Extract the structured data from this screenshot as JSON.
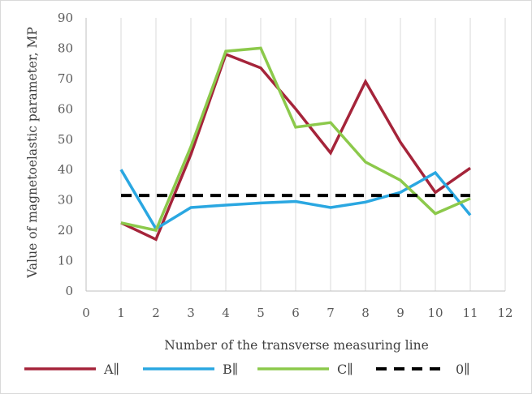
{
  "chart_data": {
    "type": "line",
    "title": "",
    "xlabel": "Number of the transverse measuring line",
    "ylabel": "Value of magnetoelastic parameter, MP",
    "xlim": [
      0,
      12
    ],
    "ylim": [
      0,
      90
    ],
    "x_ticks": [
      0,
      1,
      2,
      3,
      4,
      5,
      6,
      7,
      8,
      9,
      10,
      11,
      12
    ],
    "y_ticks": [
      0,
      10,
      20,
      30,
      40,
      50,
      60,
      70,
      80,
      90
    ],
    "grid": {
      "vertical": true,
      "horizontal": false
    },
    "legend_position": "bottom",
    "x": [
      1,
      2,
      3,
      4,
      5,
      6,
      7,
      8,
      9,
      10,
      11
    ],
    "series": [
      {
        "name": "A∥",
        "color": "#a5243a",
        "dashed": false,
        "values": [
          22.5,
          17,
          45,
          78,
          73.5,
          60,
          45.5,
          69,
          49,
          32.5,
          40.5
        ]
      },
      {
        "name": "B∥",
        "color": "#2aa7e1",
        "dashed": false,
        "values": [
          40,
          20.5,
          27.5,
          28.3,
          29,
          29.5,
          27.5,
          29.3,
          32.5,
          39,
          25
        ]
      },
      {
        "name": "C∥",
        "color": "#8cc94b",
        "dashed": false,
        "values": [
          22.5,
          20,
          47.5,
          79,
          80,
          54,
          55.5,
          42.5,
          36.5,
          25.5,
          30.5
        ]
      },
      {
        "name": "0∥",
        "color": "#000000",
        "dashed": true,
        "values": [
          31.5,
          31.5,
          31.5,
          31.5,
          31.5,
          31.5,
          31.5,
          31.5,
          31.5,
          31.5,
          31.5
        ]
      }
    ]
  }
}
